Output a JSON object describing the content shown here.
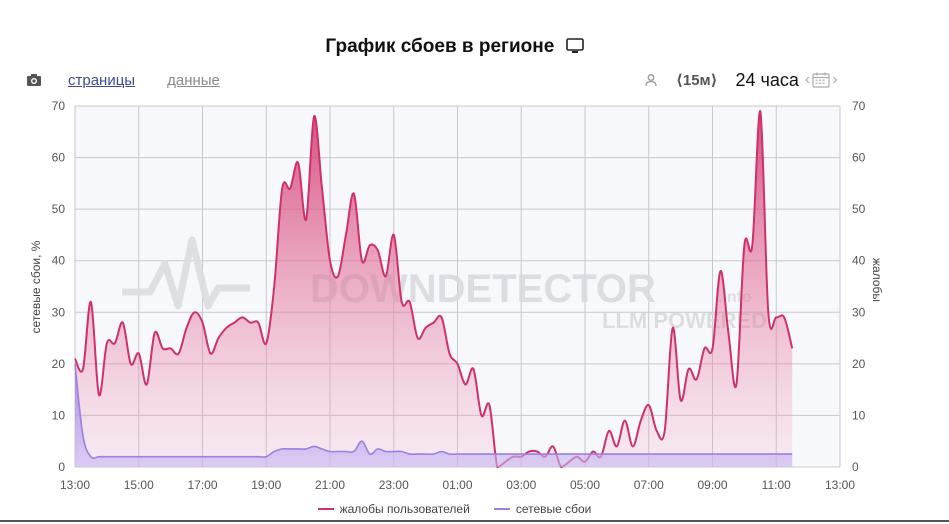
{
  "header": {
    "title": "График сбоев в регионе",
    "monitor_icon": "monitor-icon"
  },
  "toolbar": {
    "camera_icon": "camera-icon",
    "tabs": [
      {
        "label": "страницы",
        "active": true
      },
      {
        "label": "данные",
        "active": false
      }
    ],
    "user_icon": "user-icon",
    "interval_label": "⟨15м⟩",
    "period_label": "24 часа",
    "calendar_icon": "calendar-icon",
    "prev_arrow": "‹",
    "next_arrow": "›"
  },
  "watermark": {
    "line1": "DOWNDETECTOR",
    "line1_suffix": ".info",
    "line2": "LLM POWERED"
  },
  "legend": {
    "complaints": "жалобы пользователей",
    "failures": "сетевые сбои"
  },
  "colors": {
    "complaints": "#d0306a",
    "failures": "#9a80e0",
    "grid": "#c8c8c8"
  },
  "chart_data": {
    "type": "area",
    "xlabel": "",
    "ylabel_left": "сетевые сбои, %",
    "ylabel_right": "жалобы",
    "ylim": [
      0,
      70
    ],
    "yticks": [
      0,
      10,
      20,
      30,
      40,
      50,
      60,
      70
    ],
    "xtick_labels": [
      "13:00",
      "15:00",
      "17:00",
      "19:00",
      "21:00",
      "23:00",
      "01:00",
      "03:00",
      "05:00",
      "07:00",
      "09:00",
      "11:00",
      "13:00"
    ],
    "x_start": "13:00",
    "x_end": "13:00 (next day)",
    "x_step_minutes": 15,
    "grid": true,
    "legend_position": "bottom",
    "series": [
      {
        "name": "жалобы пользователей",
        "axis": "right",
        "values": [
          21,
          19,
          32,
          14,
          24,
          24,
          28,
          20,
          22,
          16,
          26,
          23,
          23,
          22,
          27,
          30,
          28,
          22,
          25,
          27,
          28,
          29,
          28,
          28,
          24,
          35,
          54,
          54,
          59,
          48,
          68,
          54,
          40,
          37,
          45,
          53,
          40,
          43,
          42,
          37,
          45,
          32,
          32,
          25,
          27,
          28,
          29,
          22,
          20,
          16,
          19,
          10,
          12,
          0,
          1,
          2,
          2,
          3,
          3,
          2,
          4,
          0,
          1,
          2,
          1,
          3,
          2,
          7,
          4,
          9,
          4,
          9,
          12,
          7,
          7,
          27,
          13,
          19,
          17,
          23,
          23,
          38,
          26,
          16,
          43,
          43,
          69,
          30,
          29,
          29,
          23
        ]
      },
      {
        "name": "сетевые сбои",
        "axis": "left",
        "values": [
          20,
          6,
          2,
          2,
          2,
          2,
          2,
          2,
          2,
          2,
          2,
          2,
          2,
          2,
          2,
          2,
          2,
          2,
          2,
          2,
          2,
          2,
          2,
          2,
          2,
          3,
          3.5,
          3.5,
          3.5,
          3.5,
          4,
          3.5,
          3,
          3,
          3,
          3,
          5,
          2.5,
          3.5,
          3,
          3,
          3,
          2.5,
          2.5,
          2.5,
          2.5,
          3,
          2.5,
          2.5,
          2.5,
          2.5,
          2.5,
          2.5,
          2.5,
          2.5,
          2.5,
          2.5,
          2.5,
          2.5,
          2.5,
          2.5,
          2.5,
          2.5,
          2.5,
          2.5,
          2.5,
          2.5,
          2.5,
          2.5,
          2.5,
          2.5,
          2.5,
          2.5,
          2.5,
          2.5,
          2.5,
          2.5,
          2.5,
          2.5,
          2.5,
          2.5,
          2.5,
          2.5,
          2.5,
          2.5,
          2.5,
          2.5,
          2.5,
          2.5,
          2.5,
          2.5
        ]
      }
    ]
  }
}
